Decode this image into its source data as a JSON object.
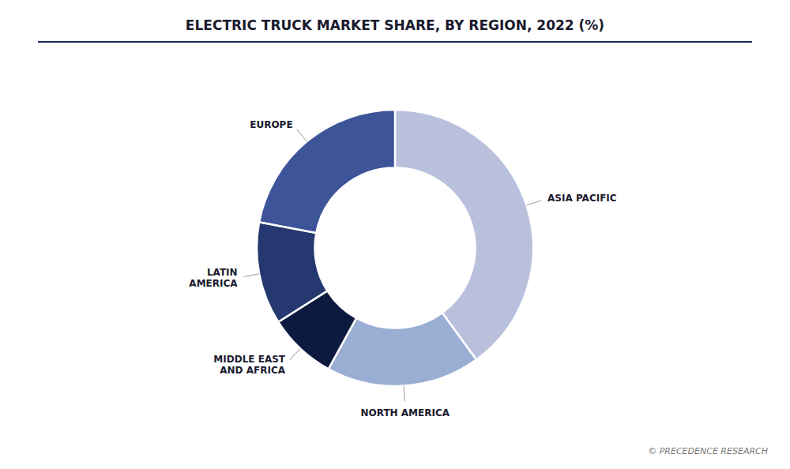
{
  "chart_data": {
    "type": "donut",
    "title": "ELECTRIC TRUCK MARKET SHARE, BY REGION, 2022 (%)",
    "categories": [
      "ASIA PACIFIC",
      "NORTH AMERICA",
      "MIDDLE EAST\nAND AFRICA",
      "LATIN\nAMERICA",
      "EUROPE"
    ],
    "values": [
      40,
      18,
      8,
      12,
      22
    ],
    "colors": [
      "#b8c0dc",
      "#9aaed4",
      "#0d1a40",
      "#253870",
      "#3d5499"
    ],
    "annotations": [
      "© PRECEDENCE RESEARCH"
    ]
  }
}
